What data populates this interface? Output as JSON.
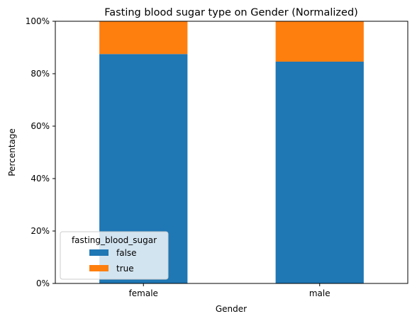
{
  "chart_data": {
    "type": "bar",
    "stacked": true,
    "normalized": true,
    "title": "Fasting blood sugar type on Gender (Normalized)",
    "xlabel": "Gender",
    "ylabel": "Percentage",
    "categories": [
      "female",
      "male"
    ],
    "series": [
      {
        "name": "false",
        "values": [
          87.5,
          84.6
        ],
        "color": "#1f77b4"
      },
      {
        "name": "true",
        "values": [
          12.5,
          15.4
        ],
        "color": "#ff7f0e"
      }
    ],
    "ylim": [
      0,
      100
    ],
    "yticks": [
      0,
      20,
      40,
      60,
      80,
      100
    ],
    "ytick_labels": [
      "0%",
      "20%",
      "40%",
      "60%",
      "80%",
      "100%"
    ],
    "legend": {
      "title": "fasting_blood_sugar",
      "placement": "lower-left"
    },
    "grid": false
  }
}
